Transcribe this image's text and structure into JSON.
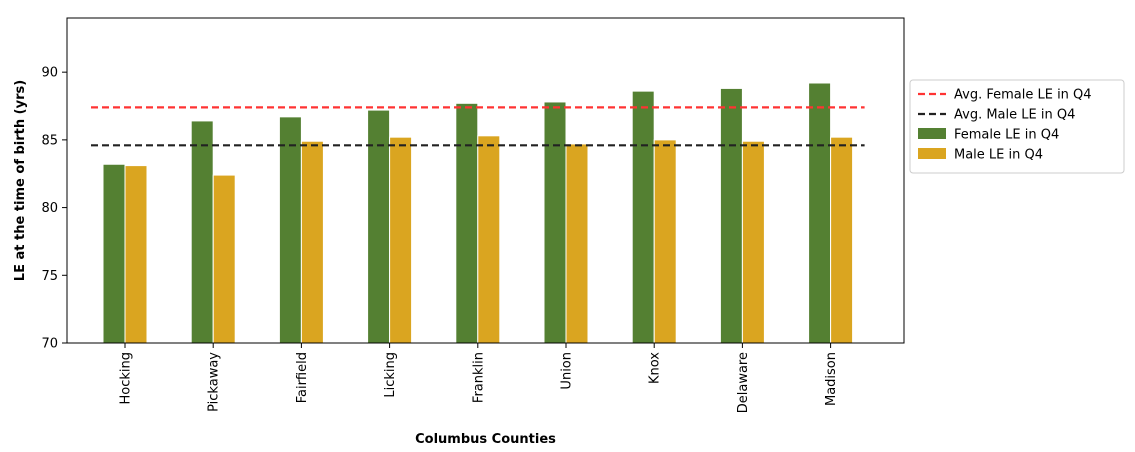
{
  "chart_data": {
    "type": "bar",
    "title": "",
    "xlabel": "Columbus Counties",
    "ylabel": "LE at the time of birth (yrs)",
    "ylim": [
      70,
      94
    ],
    "yticks": [
      70,
      75,
      80,
      85,
      90
    ],
    "grid": false,
    "legend_position": "outside-right",
    "categories": [
      "Hocking",
      "Pickaway",
      "Fairfield",
      "Licking",
      "Franklin",
      "Union",
      "Knox",
      "Delaware",
      "Madison"
    ],
    "series": [
      {
        "name": "Female LE in Q4",
        "type": "bar",
        "color": "#548032",
        "values": [
          83.2,
          86.4,
          86.7,
          87.2,
          87.7,
          87.8,
          88.6,
          88.8,
          89.2
        ]
      },
      {
        "name": "Male LE in Q4",
        "type": "bar",
        "color": "#DAA520",
        "values": [
          83.1,
          82.4,
          84.9,
          85.2,
          85.3,
          84.7,
          85.0,
          84.9,
          85.2
        ]
      }
    ],
    "reference_lines": [
      {
        "name": "Avg. Female LE in Q4",
        "value": 87.4,
        "color": "#FF3333",
        "style": "dashed"
      },
      {
        "name": "Avg. Male LE in Q4",
        "value": 84.6,
        "color": "#222222",
        "style": "dashed"
      }
    ]
  }
}
